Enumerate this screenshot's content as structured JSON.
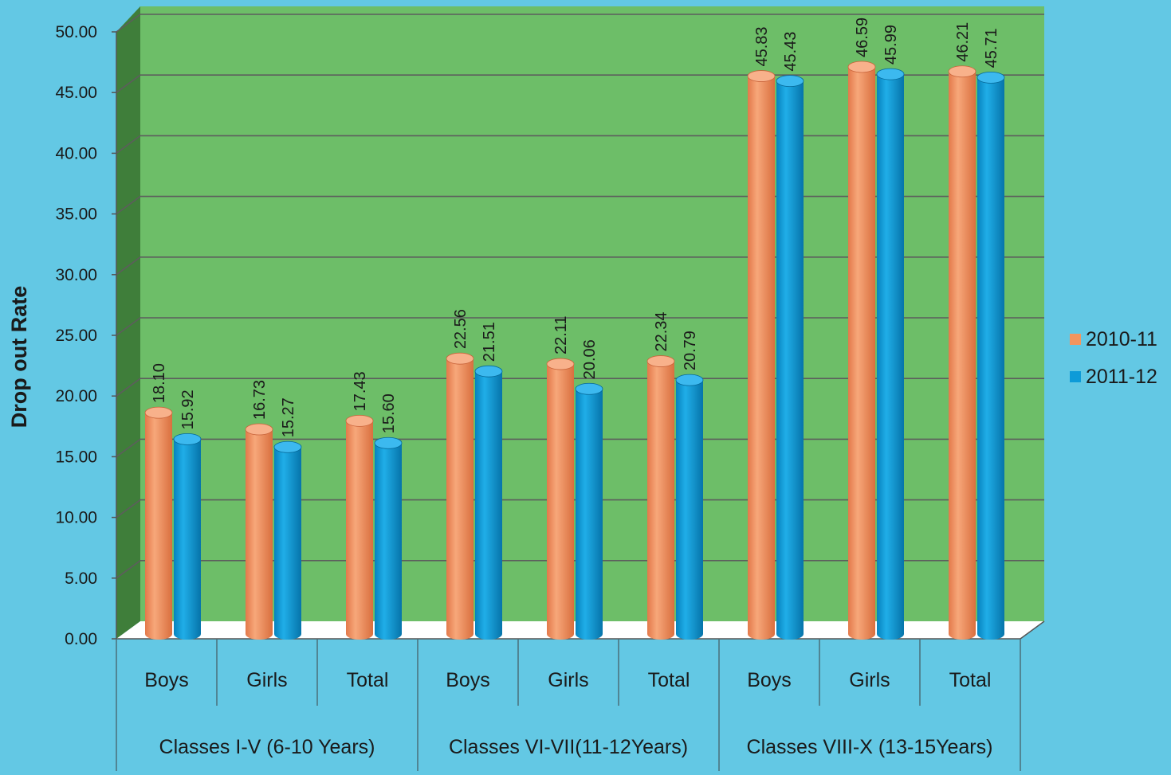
{
  "colors": {
    "background": "#63c8e4",
    "plot_back": "#6dbe68",
    "plot_side": "#3f7e3a",
    "floor": "#ffffff",
    "gridline": "#5d5d5d",
    "series_2010": "#f2955f",
    "series_2011": "#0e9bd8",
    "text": "#1a1a1a"
  },
  "chart_data": {
    "type": "bar",
    "ylabel": "Drop out Rate",
    "ylim": [
      0,
      50
    ],
    "yticks": [
      "0.00",
      "5.00",
      "10.00",
      "15.00",
      "20.00",
      "25.00",
      "30.00",
      "35.00",
      "40.00",
      "45.00",
      "50.00"
    ],
    "grid": true,
    "legend_position": "right",
    "groups": [
      {
        "label": "Classes I-V (6-10 Years)",
        "categories": [
          "Boys",
          "Girls",
          "Total"
        ]
      },
      {
        "label": "Classes VI-VII(11-12Years)",
        "categories": [
          "Boys",
          "Girls",
          "Total"
        ]
      },
      {
        "label": "Classes VIII-X (13-15Years)",
        "categories": [
          "Boys",
          "Girls",
          "Total"
        ]
      }
    ],
    "series": [
      {
        "name": "2010-11",
        "color": "#f2955f",
        "values": [
          18.1,
          16.73,
          17.43,
          22.56,
          22.11,
          22.34,
          45.83,
          46.59,
          46.21
        ],
        "labels": [
          "18.10",
          "16.73",
          "17.43",
          "22.56",
          "22.11",
          "22.34",
          "45.83",
          "46.59",
          "46.21"
        ]
      },
      {
        "name": "2011-12",
        "color": "#0e9bd8",
        "values": [
          15.92,
          15.27,
          15.6,
          21.51,
          20.06,
          20.79,
          45.43,
          45.99,
          45.71
        ],
        "labels": [
          "15.92",
          "15.27",
          "15.60",
          "21.51",
          "20.06",
          "20.79",
          "45.43",
          "45.99",
          "45.71"
        ]
      }
    ]
  }
}
